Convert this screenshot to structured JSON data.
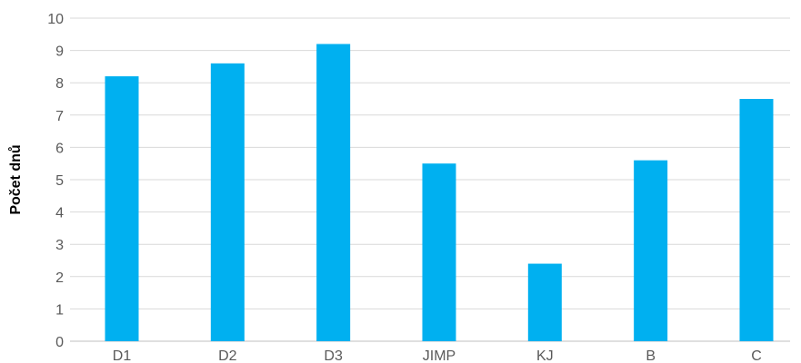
{
  "chart_data": {
    "type": "bar",
    "categories": [
      "D1",
      "D2",
      "D3",
      "JIMP",
      "KJ",
      "B",
      "C"
    ],
    "values": [
      8.2,
      8.6,
      9.2,
      5.5,
      2.4,
      5.6,
      7.5
    ],
    "ylabel": "Počet dnů",
    "ylim": [
      0,
      10
    ],
    "yticks": [
      "0",
      "1",
      "2",
      "3",
      "4",
      "5",
      "6",
      "7",
      "8",
      "9",
      "10"
    ],
    "grid": true,
    "legend": "none",
    "bar_color": "#00b0f0"
  }
}
